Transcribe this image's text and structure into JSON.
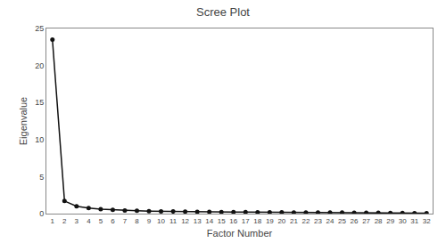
{
  "chart_data": {
    "type": "line",
    "title": "Scree Plot",
    "xlabel": "Factor Number",
    "ylabel": "Eigenvalue",
    "x": [
      1,
      2,
      3,
      4,
      5,
      6,
      7,
      8,
      9,
      10,
      11,
      12,
      13,
      14,
      15,
      16,
      17,
      18,
      19,
      20,
      21,
      22,
      23,
      24,
      25,
      26,
      27,
      28,
      29,
      30,
      31,
      32
    ],
    "values": [
      23.5,
      1.7,
      1.0,
      0.75,
      0.6,
      0.5,
      0.42,
      0.38,
      0.34,
      0.31,
      0.29,
      0.27,
      0.25,
      0.23,
      0.22,
      0.21,
      0.2,
      0.19,
      0.18,
      0.17,
      0.16,
      0.155,
      0.15,
      0.145,
      0.14,
      0.13,
      0.12,
      0.11,
      0.1,
      0.09,
      0.07,
      0.05
    ],
    "xlim": [
      0.5,
      32.5
    ],
    "xticks": [
      1,
      2,
      3,
      4,
      5,
      6,
      7,
      8,
      9,
      10,
      11,
      12,
      13,
      14,
      15,
      16,
      17,
      18,
      19,
      20,
      21,
      22,
      23,
      24,
      25,
      26,
      27,
      28,
      29,
      30,
      31,
      32
    ],
    "ylim": [
      0,
      25
    ],
    "yticks": [
      0,
      5,
      10,
      15,
      20,
      25
    ],
    "color": "#111111",
    "marker": "circle",
    "grid": false
  }
}
